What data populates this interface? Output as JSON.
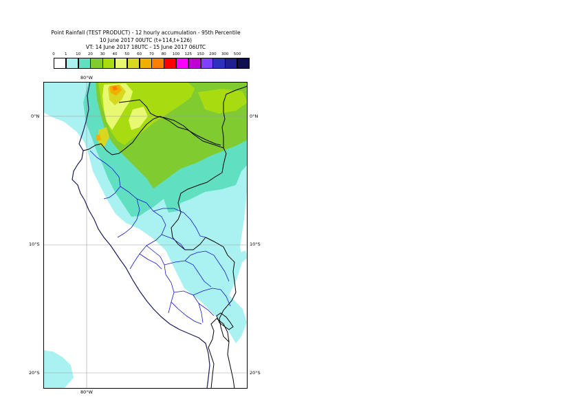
{
  "title": {
    "line1": "Point Rainfall (TEST PRODUCT) - 12 hourly accumulation - 95th Percentile",
    "line2": "10 June 2017 00UTC (t+114,t+126)",
    "line3": "VT: 14 June 2017 18UTC - 15 June 2017 06UTC"
  },
  "legend": {
    "thresholds": [
      "0",
      "1",
      "10",
      "20",
      "30",
      "40",
      "50",
      "60",
      "70",
      "80",
      "100",
      "125",
      "150",
      "200",
      "300",
      "500"
    ],
    "colors": [
      "#ffffff",
      "#aaf2f2",
      "#60e0c0",
      "#80cc30",
      "#a8dc10",
      "#e8f870",
      "#d8d820",
      "#f0b000",
      "#ff8000",
      "#ff0000",
      "#ff00ff",
      "#c000d0",
      "#8040ff",
      "#3030c0",
      "#202090",
      "#101050"
    ]
  },
  "map": {
    "lon_labels": {
      "top": "80°W",
      "bottom": "80°W"
    },
    "lat_labels": {
      "eq_left": "0°N",
      "eq_right": "0°N",
      "s10_left": "10°S",
      "s10_right": "10°S",
      "s20_left": "20°S",
      "s20_right": "20°S"
    }
  }
}
